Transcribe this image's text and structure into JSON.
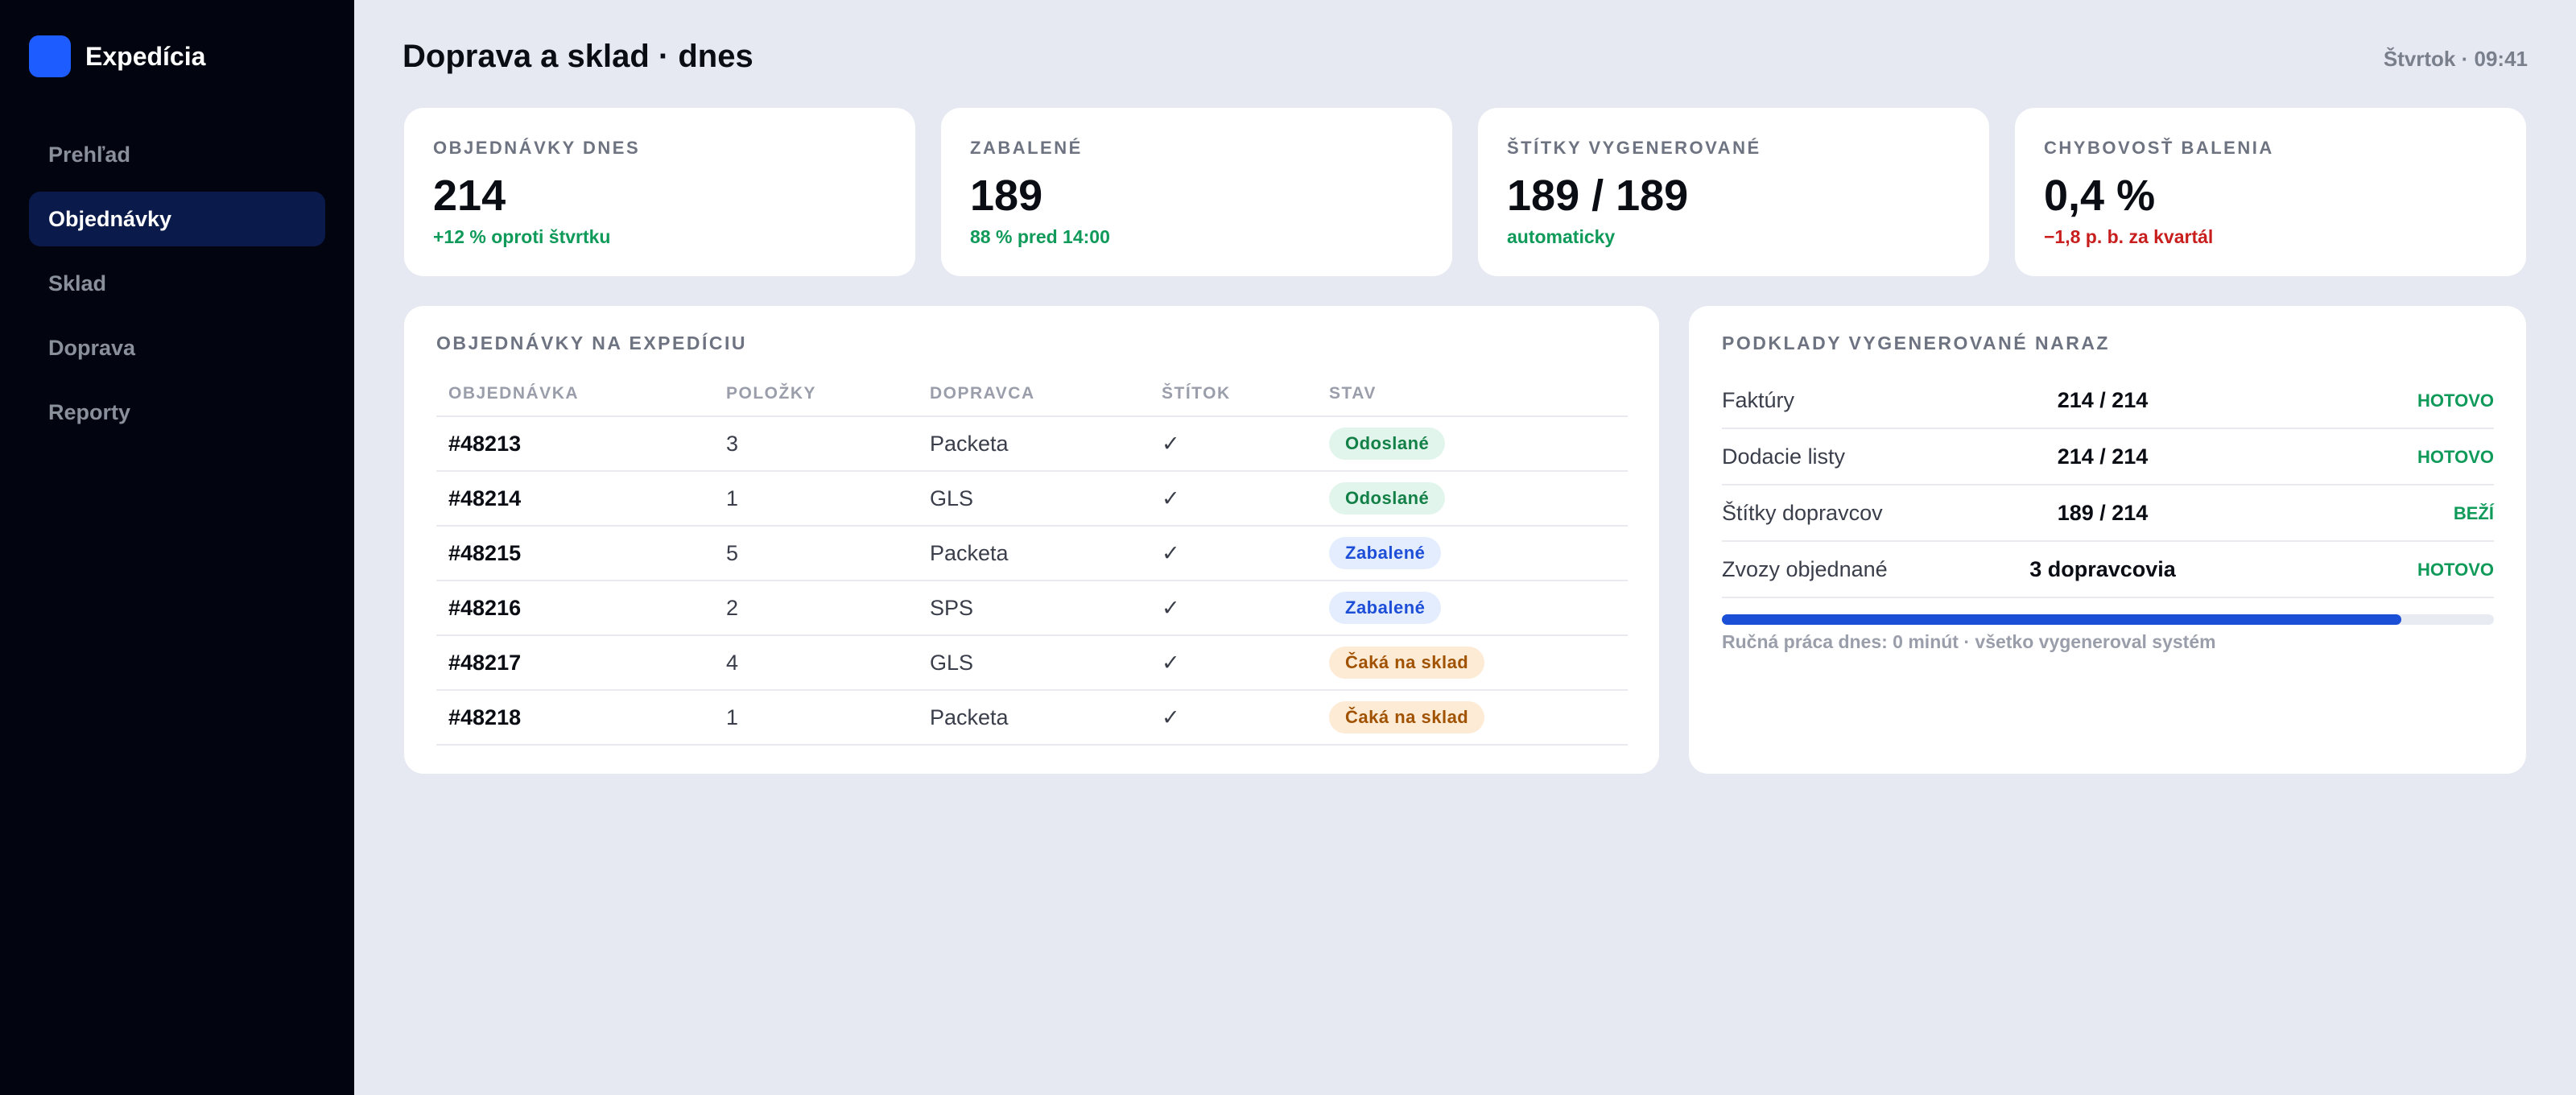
{
  "sidebar": {
    "brand": "Expedícia",
    "nav": [
      "Prehľad",
      "Objednávky",
      "Sklad",
      "Doprava",
      "Reporty"
    ],
    "active": 1
  },
  "header": {
    "title": "Doprava a sklad · dnes",
    "datetime": "Štvrtok · 09:41"
  },
  "kpis": [
    {
      "label": "OBJEDNÁVKY DNES",
      "value": "214",
      "note": "+12 % oproti štvrtku",
      "note_color": "#0f9a5a"
    },
    {
      "label": "ZABALENÉ",
      "value": "189",
      "note": "88 % pred 14:00",
      "note_color": "#0f9a5a"
    },
    {
      "label": "ŠTÍTKY VYGENEROVANÉ",
      "value": "189 / 189",
      "note": "automaticky",
      "note_color": "#0f9a5a"
    },
    {
      "label": "CHYBOVOSŤ BALENIA",
      "value": "0,4 %",
      "note": "−1,8 p. b. za kvartál",
      "note_color": "#c81e1e"
    }
  ],
  "table": {
    "title": "OBJEDNÁVKY NA EXPEDÍCIU",
    "columns": [
      "OBJEDNÁVKA",
      "POLOŽKY",
      "DOPRAVCA",
      "ŠTÍTOK",
      "STAV"
    ],
    "rows": [
      {
        "cells": [
          "#48213",
          "3",
          "Packeta",
          "✓",
          "Odoslané"
        ],
        "status_bg": "#e2f5ec",
        "status_fg": "#138048"
      },
      {
        "cells": [
          "#48214",
          "1",
          "GLS",
          "✓",
          "Odoslané"
        ],
        "status_bg": "#e2f5ec",
        "status_fg": "#138048"
      },
      {
        "cells": [
          "#48215",
          "5",
          "Packeta",
          "✓",
          "Zabalené"
        ],
        "status_bg": "#e4edfd",
        "status_fg": "#1d4ed8"
      },
      {
        "cells": [
          "#48216",
          "2",
          "SPS",
          "✓",
          "Zabalené"
        ],
        "status_bg": "#e4edfd",
        "status_fg": "#1d4ed8"
      },
      {
        "cells": [
          "#48217",
          "4",
          "GLS",
          "✓",
          "Čaká na sklad"
        ],
        "status_bg": "#fdebd6",
        "status_fg": "#a15200"
      },
      {
        "cells": [
          "#48218",
          "1",
          "Packeta",
          "✓",
          "Čaká na sklad"
        ],
        "status_bg": "#fdebd6",
        "status_fg": "#a15200"
      }
    ]
  },
  "docs": {
    "title": "PODKLADY VYGENEROVANÉ NARAZ",
    "rows": [
      {
        "label": "Faktúry",
        "value": "214 / 214",
        "status": "HOTOVO",
        "status_color": "#0f9a5a"
      },
      {
        "label": "Dodacie listy",
        "value": "214 / 214",
        "status": "HOTOVO",
        "status_color": "#0f9a5a"
      },
      {
        "label": "Štítky dopravcov",
        "value": "189 / 214",
        "status": "BEŽÍ",
        "status_color": "#0f9a5a"
      },
      {
        "label": "Zvozy objednané",
        "value": "3 dopravcovia",
        "status": "HOTOVO",
        "status_color": "#0f9a5a"
      }
    ],
    "progress": 88,
    "caption": "Ručná práca dnes: 0 minút · všetko vygeneroval systém"
  }
}
